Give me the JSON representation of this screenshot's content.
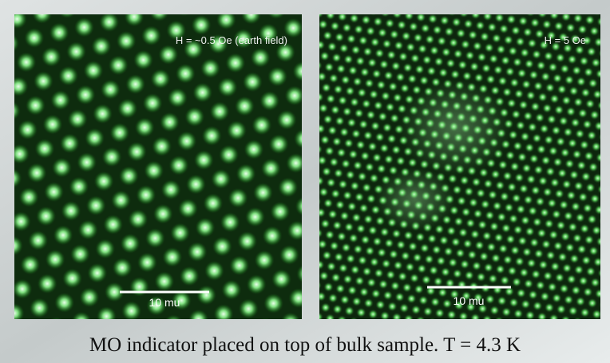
{
  "panels": [
    {
      "label": "H = ~0.5 Oe (earth field)",
      "scale_bar": "10 mu"
    },
    {
      "label": "H = 5 Oe",
      "scale_bar": "10 mu"
    }
  ],
  "caption": "MO indicator placed on top of bulk sample. T = 4.3 K"
}
